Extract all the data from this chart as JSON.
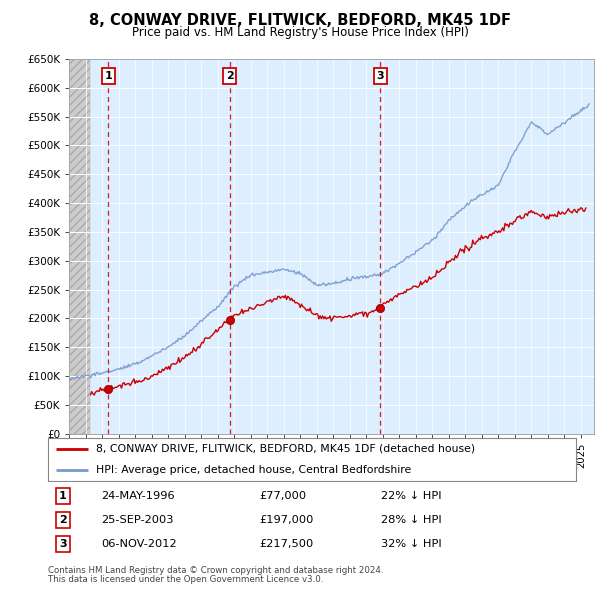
{
  "title": "8, CONWAY DRIVE, FLITWICK, BEDFORD, MK45 1DF",
  "subtitle": "Price paid vs. HM Land Registry's House Price Index (HPI)",
  "ylim": [
    0,
    650000
  ],
  "yticks": [
    0,
    50000,
    100000,
    150000,
    200000,
    250000,
    300000,
    350000,
    400000,
    450000,
    500000,
    550000,
    600000,
    650000
  ],
  "ytick_labels": [
    "£0",
    "£50K",
    "£100K",
    "£150K",
    "£200K",
    "£250K",
    "£300K",
    "£350K",
    "£400K",
    "£450K",
    "£500K",
    "£550K",
    "£600K",
    "£650K"
  ],
  "xlim_start": 1994.0,
  "xlim_end": 2025.8,
  "hatch_end": 1995.3,
  "transactions": [
    {
      "id": 1,
      "date": "24-MAY-1996",
      "year": 1996.38,
      "price": 77000,
      "pct": "22%",
      "direction": "↓"
    },
    {
      "id": 2,
      "date": "25-SEP-2003",
      "year": 2003.73,
      "price": 197000,
      "pct": "28%",
      "direction": "↓"
    },
    {
      "id": 3,
      "date": "06-NOV-2012",
      "year": 2012.85,
      "price": 217500,
      "pct": "32%",
      "direction": "↓"
    }
  ],
  "line_color_red": "#cc0000",
  "line_color_blue": "#7799cc",
  "bg_plot": "#ddeeff",
  "grid_color": "#ffffff",
  "legend_line1": "8, CONWAY DRIVE, FLITWICK, BEDFORD, MK45 1DF (detached house)",
  "legend_line2": "HPI: Average price, detached house, Central Bedfordshire",
  "footnote1": "Contains HM Land Registry data © Crown copyright and database right 2024.",
  "footnote2": "This data is licensed under the Open Government Licence v3.0."
}
